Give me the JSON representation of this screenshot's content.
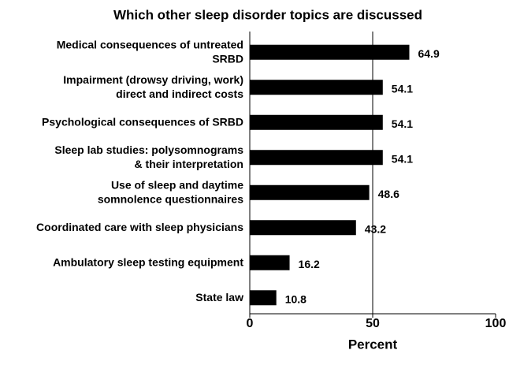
{
  "chart_data": {
    "type": "bar",
    "orientation": "horizontal",
    "title": "Which other sleep disorder topics are discussed",
    "x_label": "Percent",
    "categories": [
      "Medical consequences of untreated\nSRBD",
      "Impairment (drowsy driving, work)\ndirect and indirect costs",
      "Psychological consequences of SRBD",
      "Sleep lab studies: polysomnograms\n& their interpretation",
      "Use of sleep and daytime\nsomnolence questionnaires",
      "Coordinated care with sleep physicians",
      "Ambulatory sleep testing equipment",
      "State law"
    ],
    "values": [
      64.9,
      54.1,
      54.1,
      54.1,
      48.6,
      43.2,
      16.2,
      10.8
    ],
    "color": "#000000",
    "xlim": [
      0,
      100
    ],
    "xticks": [
      0,
      50,
      100
    ],
    "reference_lines": [
      50
    ]
  }
}
